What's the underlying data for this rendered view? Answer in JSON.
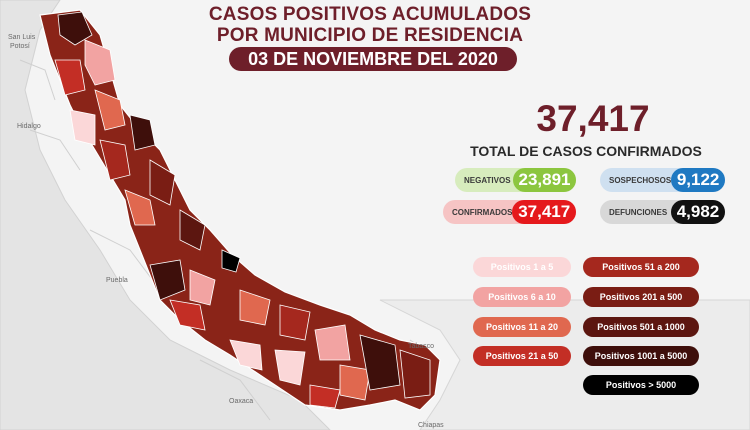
{
  "header": {
    "title_line1": "CASOS POSITIVOS ACUMULADOS",
    "title_line2": "POR MUNICIPIO DE RESIDENCIA",
    "date": "03 DE NOVIEMBRE DEL 2020"
  },
  "map": {
    "labels": {
      "san_luis": "San Luis",
      "potosi": "Potosí",
      "hidalgo": "Hidalgo",
      "puebla": "Puebla",
      "oaxaca": "Oaxaca",
      "tabasco": "Tabasco",
      "chiapas": "Chiapas"
    }
  },
  "summary": {
    "total": "37,417",
    "total_label": "TOTAL DE CASOS CONFIRMADOS",
    "negativos": {
      "label": "NEGATIVOS",
      "value": "23,891",
      "color": "#8cc63f"
    },
    "sospechosos": {
      "label": "SOSPECHOSOS",
      "value": "9,122",
      "color": "#1f79c2"
    },
    "confirmados": {
      "label": "CONFIRMADOS",
      "value": "37,417",
      "color": "#e5191c"
    },
    "defunciones": {
      "label": "DEFUNCIONES",
      "value": "4,982",
      "color": "#111111"
    }
  },
  "legend": [
    {
      "label": "Positivos 1 a 5",
      "color": "#fbd7d8"
    },
    {
      "label": "Positivos 6 a 10",
      "color": "#f2a3a2"
    },
    {
      "label": "Positivos 11 a 20",
      "color": "#e0684f"
    },
    {
      "label": "Positivos 21 a 50",
      "color": "#c32e25"
    },
    {
      "label": "Positivos 51 a 200",
      "color": "#a5281e"
    },
    {
      "label": "Positivos 201 a 500",
      "color": "#7a1d14"
    },
    {
      "label": "Positivos 501 a 1000",
      "color": "#5c1610"
    },
    {
      "label": "Positivos 1001 a 5000",
      "color": "#3e0f0b"
    },
    {
      "label": "Positivos > 5000",
      "color": "#000000"
    }
  ]
}
